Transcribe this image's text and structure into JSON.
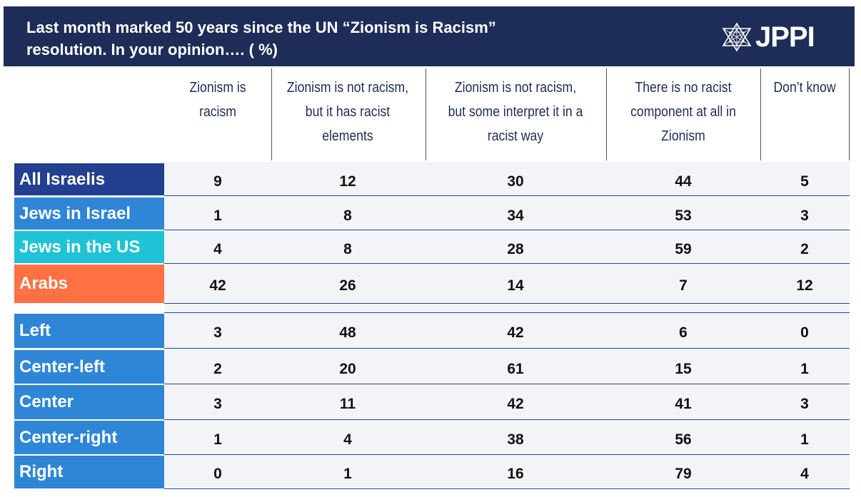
{
  "title": {
    "line1": "Last month marked 50 years since the UN “Zionism is Racism”",
    "line2": "resolution. In your opinion…. ( %)"
  },
  "logo": {
    "text": "JPPI",
    "icon": "star-of-david-icon"
  },
  "chart_data": {
    "type": "table",
    "unit": "%",
    "columns": [
      "Zionism is racism",
      "Zionism is not racism, but it has racist elements",
      "Zionism is not racism, but some interpret it in a racist way",
      "There is no racist component at all in Zionism",
      "Don’t know"
    ],
    "column_lines": [
      [
        "Zionism is",
        "racism"
      ],
      [
        "Zionism is not racism,",
        "but it has racist",
        "elements"
      ],
      [
        "Zionism is not racism,",
        "but some interpret it in a",
        "racist way"
      ],
      [
        "There is no racist",
        "component at all in",
        "Zionism"
      ],
      [
        "Don’t know"
      ]
    ],
    "rows": [
      {
        "label": "All Israelis",
        "color": "#233f8f",
        "values": [
          9,
          12,
          30,
          44,
          5
        ]
      },
      {
        "label": "Jews in Israel",
        "color": "#2f86d6",
        "values": [
          1,
          8,
          34,
          53,
          3
        ]
      },
      {
        "label": "Jews in the US",
        "color": "#1fc3d6",
        "values": [
          4,
          8,
          28,
          59,
          2
        ]
      },
      {
        "label": "Arabs",
        "color": "#ff7043",
        "values": [
          42,
          26,
          14,
          7,
          12
        ]
      },
      {
        "label": "Left",
        "color": "#2f86d6",
        "values": [
          3,
          48,
          42,
          6,
          0
        ]
      },
      {
        "label": "Center-left",
        "color": "#2f86d6",
        "values": [
          2,
          20,
          61,
          15,
          1
        ]
      },
      {
        "label": "Center",
        "color": "#2f86d6",
        "values": [
          3,
          11,
          42,
          41,
          3
        ]
      },
      {
        "label": "Center-right",
        "color": "#2f86d6",
        "values": [
          1,
          4,
          38,
          56,
          1
        ]
      },
      {
        "label": "Right",
        "color": "#2f86d6",
        "values": [
          0,
          1,
          16,
          79,
          4
        ]
      }
    ]
  }
}
